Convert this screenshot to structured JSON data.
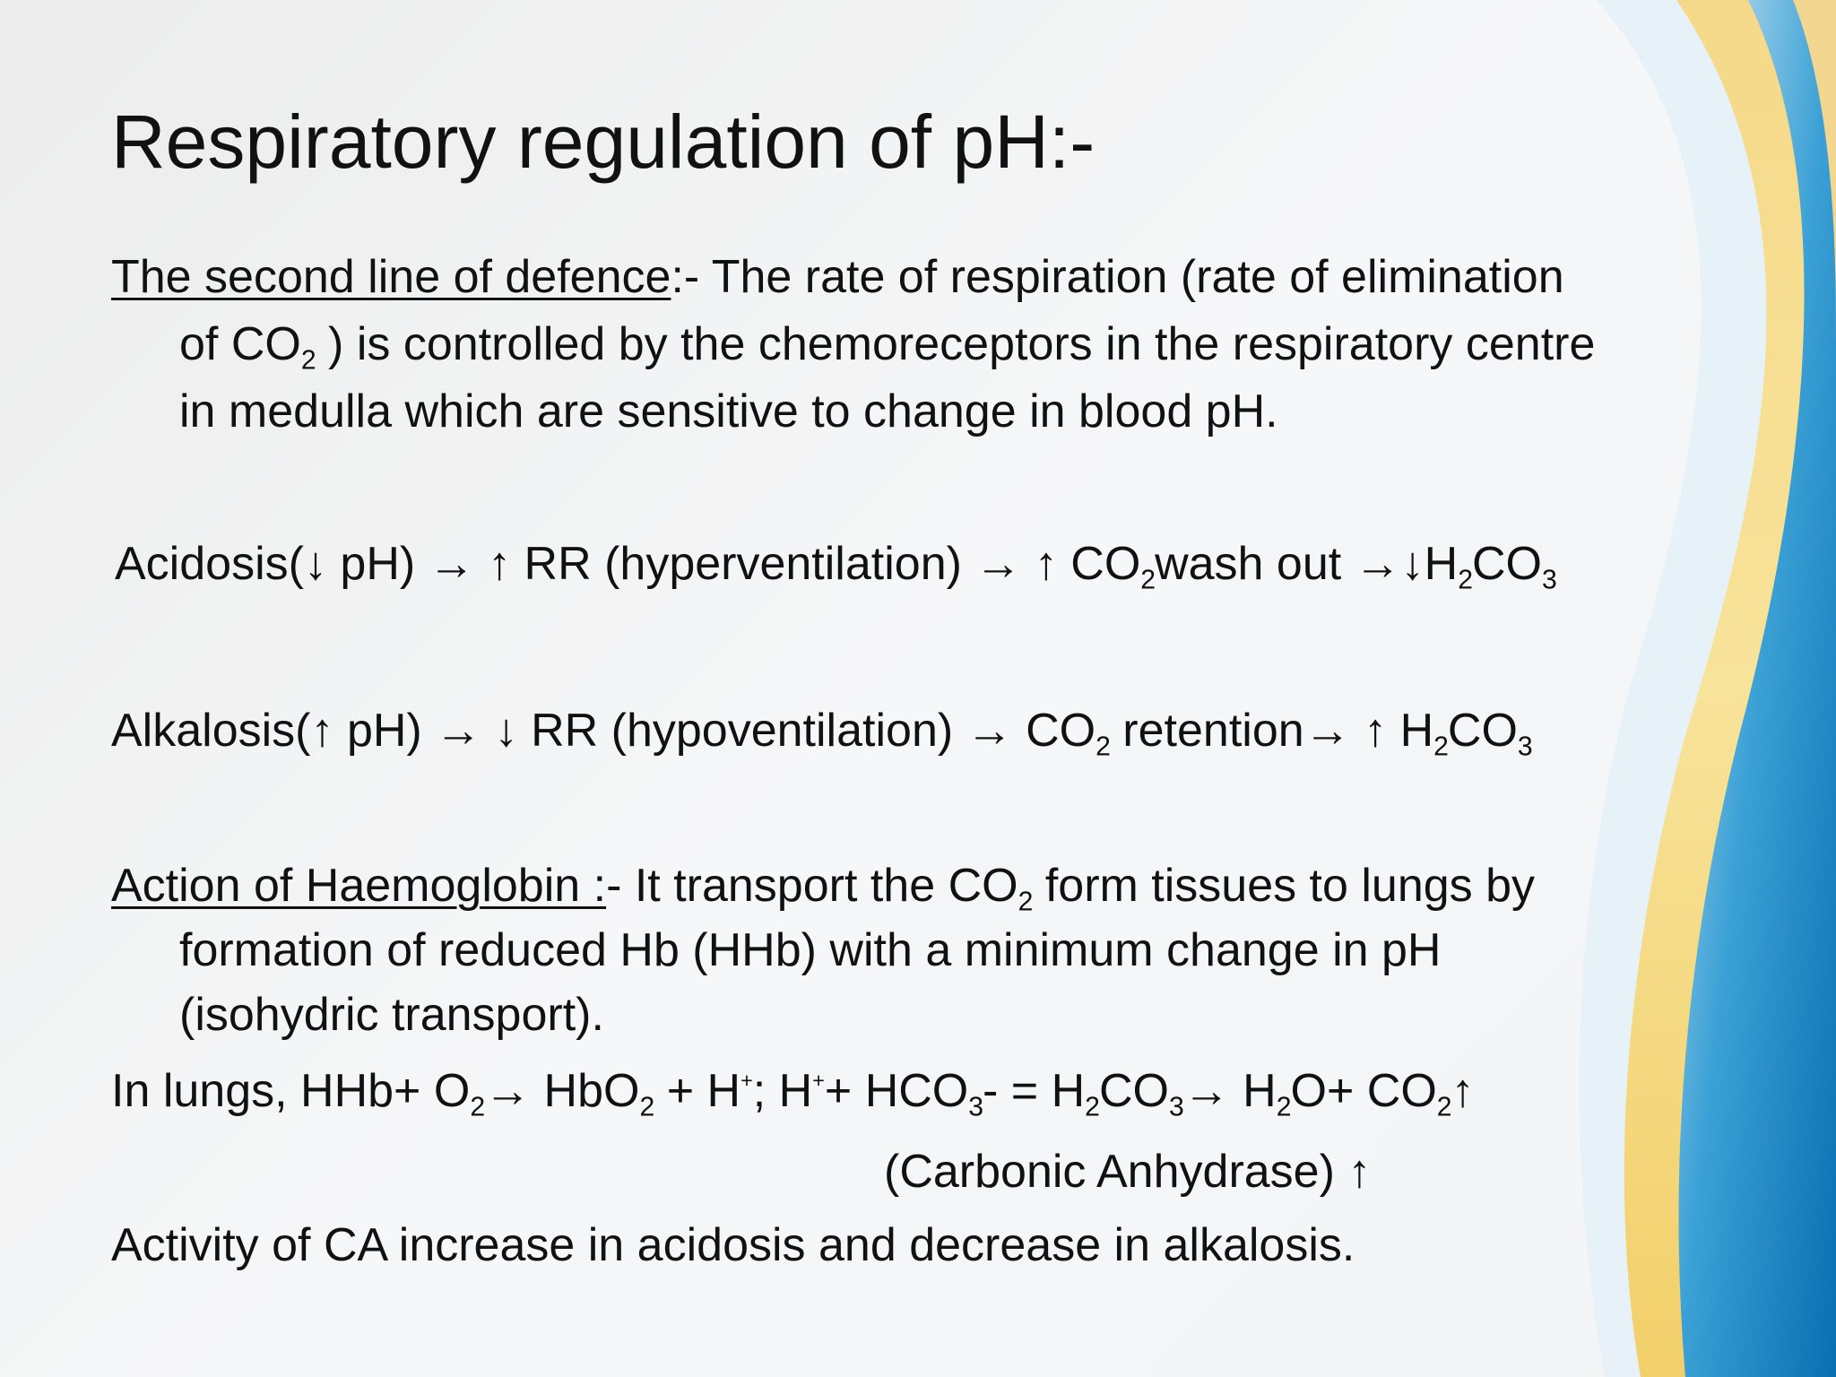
{
  "slide": {
    "title": "Respiratory regulation of pH:-",
    "paragraph_1": [
      "The second line of defence",
      ":-  The rate of respiration (rate of elimination",
      "of CO",
      "2",
      " ) is controlled by the chemoreceptors in the respiratory centre",
      "in medulla which are sensitive to change in blood pH."
    ],
    "acidosis": [
      "Acidosis(↓ pH) → ↑ RR (hyperventilation) → ↑ CO",
      "2",
      "wash out →↓H",
      "2",
      "CO",
      "3"
    ],
    "alkalosis": [
      "Alkalosis(↑ pH) → ↓ RR (hypoventilation) → CO",
      "2",
      " retention→ ↑ H",
      "2",
      "CO",
      "3"
    ],
    "haemoglobin": [
      "Action of Haemoglobin :",
      "- It transport the CO",
      "2",
      " form tissues to lungs by",
      "formation of reduced Hb (HHb) with a minimum change in pH",
      "(isohydric transport)."
    ],
    "lungs": [
      "In lungs, HHb+ O",
      "2",
      "→ HbO",
      "2",
      " + H",
      "+",
      "; H",
      "+",
      "+ HCO",
      "3",
      "-  = H",
      "2",
      "CO",
      "3",
      "→ H",
      "2",
      "O+ CO",
      "2",
      "↑"
    ],
    "enzyme": "(Carbonic Anhydrase) ↑",
    "activity": "Activity of  CA increase in acidosis and decrease in alkalosis."
  }
}
